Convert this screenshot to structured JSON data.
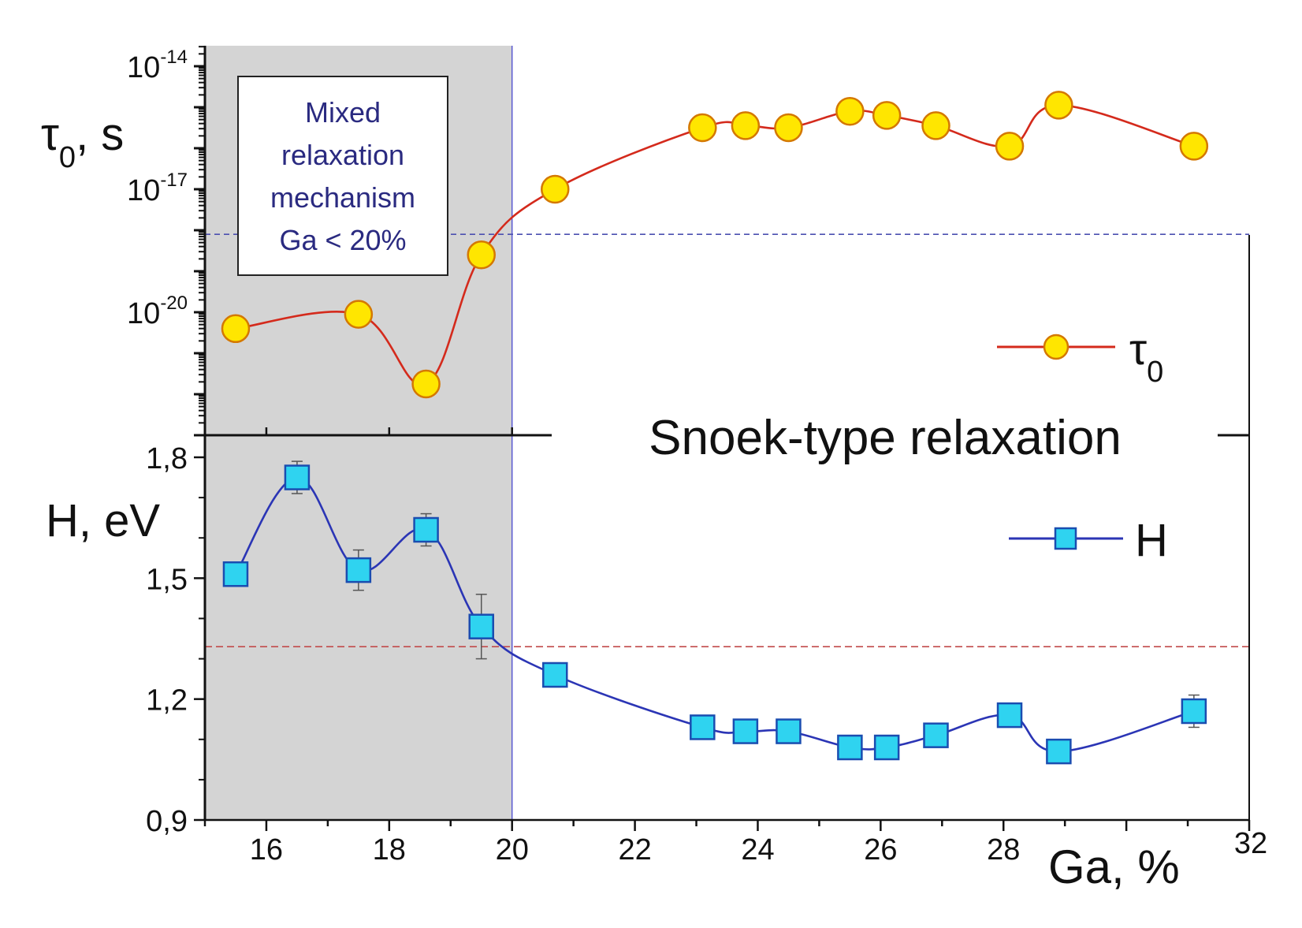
{
  "chart_data": [
    {
      "type": "scatter",
      "panel": "top",
      "yscale": "log",
      "ylabel_symbol": "τ",
      "ylabel_sub": "0",
      "ylabel_unit": ", s",
      "xlim": [
        15,
        32
      ],
      "ylim_log10": [
        -23,
        -13.5
      ],
      "yticks": [
        {
          "base": "10",
          "exp": "-14",
          "value": -14
        },
        {
          "base": "10",
          "exp": "-17",
          "value": -17
        },
        {
          "base": "10",
          "exp": "-20",
          "value": -20
        }
      ],
      "threshold_log10": -18.1,
      "series": [
        {
          "name": "τ",
          "name_sub": "0",
          "color": "#d42a1c",
          "marker": "circle",
          "marker_fill": "#ffe600",
          "marker_stroke": "#d47800",
          "x": [
            15.5,
            17.5,
            18.6,
            19.5,
            20.7,
            23.1,
            23.8,
            24.5,
            25.5,
            26.1,
            26.9,
            28.1,
            28.9,
            31.1
          ],
          "y_log10": [
            -20.4,
            -20.05,
            -21.75,
            -18.6,
            -17.0,
            -15.5,
            -15.45,
            -15.5,
            -15.1,
            -15.2,
            -15.45,
            -15.95,
            -14.95,
            -15.95
          ]
        }
      ],
      "annotations": {
        "box_lines": [
          "Mixed",
          "relaxation",
          "mechanism",
          "Ga < 20%"
        ],
        "center_text": "Snoek-type relaxation"
      }
    },
    {
      "type": "scatter",
      "panel": "bottom",
      "ylabel": "H, eV",
      "xlabel": "Ga, %",
      "xlim": [
        15,
        32
      ],
      "ylim": [
        0.9,
        1.8
      ],
      "xticks": [
        {
          "label": "16",
          "value": 16
        },
        {
          "label": "18",
          "value": 18
        },
        {
          "label": "20",
          "value": 20
        },
        {
          "label": "22",
          "value": 22
        },
        {
          "label": "24",
          "value": 24
        },
        {
          "label": "26",
          "value": 26
        },
        {
          "label": "28",
          "value": 28
        },
        {
          "label": "32",
          "value": 32
        }
      ],
      "yticks": [
        {
          "label": "1,8",
          "value": 1.8
        },
        {
          "label": "1,5",
          "value": 1.5
        },
        {
          "label": "1,2",
          "value": 1.2
        },
        {
          "label": "0,9",
          "value": 0.9
        }
      ],
      "threshold": 1.33,
      "series": [
        {
          "name": "H",
          "color": "#2b35b5",
          "marker": "square",
          "marker_fill": "#2fd3f0",
          "marker_stroke": "#1a4db0",
          "x": [
            15.5,
            16.5,
            17.5,
            18.6,
            19.5,
            20.7,
            23.1,
            23.8,
            24.5,
            25.5,
            26.1,
            26.9,
            28.1,
            28.9,
            31.1
          ],
          "y": [
            1.51,
            1.75,
            1.52,
            1.62,
            1.38,
            1.26,
            1.13,
            1.12,
            1.12,
            1.08,
            1.08,
            1.11,
            1.16,
            1.07,
            1.17
          ],
          "err": [
            0.02,
            0.04,
            0.05,
            0.04,
            0.08,
            0.03,
            0.02,
            0.02,
            0.02,
            0.02,
            0.02,
            0.02,
            0.02,
            0.02,
            0.04
          ]
        }
      ]
    }
  ],
  "shaded_region": {
    "from": 15,
    "to": 20,
    "fill": "#d4d4d4"
  },
  "divider_x": 20,
  "box_text_color": "#2a2a80",
  "threshold_top_color": "#4b4fb0",
  "threshold_bottom_color": "#c24a4a"
}
